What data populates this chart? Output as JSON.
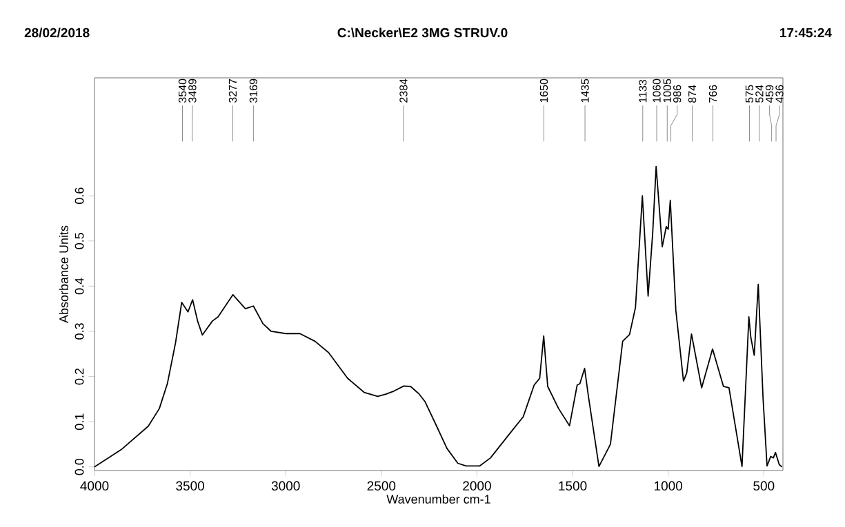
{
  "chart_data": {
    "type": "line",
    "title": "C:\\Necker\\E2   3MG  STRUV.0",
    "annotations": [
      "28/02/2018",
      "17:45:24",
      {
        "text": "3540",
        "x": 3540
      },
      {
        "text": "3489",
        "x": 3489
      },
      {
        "text": "3277",
        "x": 3277
      },
      {
        "text": "3169",
        "x": 3169
      },
      {
        "text": "2384",
        "x": 2384
      },
      {
        "text": "1650",
        "x": 1650
      },
      {
        "text": "1435",
        "x": 1435
      },
      {
        "text": "1133",
        "x": 1133
      },
      {
        "text": "1060",
        "x": 1060
      },
      {
        "text": "1005",
        "x": 1005
      },
      {
        "text": "986",
        "x": 986
      },
      {
        "text": "874",
        "x": 874
      },
      {
        "text": "766",
        "x": 766
      },
      {
        "text": "575",
        "x": 575
      },
      {
        "text": "524",
        "x": 524
      },
      {
        "text": "459",
        "x": 459
      },
      {
        "text": "436",
        "x": 436
      }
    ],
    "xlabel": "Wavenumber cm-1",
    "ylabel": "Absorbance Units",
    "x": [
      4000,
      3861,
      3719,
      3661,
      3619,
      3576,
      3544,
      3511,
      3487,
      3461,
      3436,
      3383,
      3354,
      3276,
      3211,
      3169,
      3119,
      3076,
      3000,
      2926,
      2847,
      2776,
      2676,
      2590,
      2519,
      2476,
      2433,
      2383,
      2347,
      2304,
      2271,
      2214,
      2157,
      2100,
      2057,
      1986,
      1929,
      1815,
      1758,
      1701,
      1672,
      1651,
      1630,
      1573,
      1516,
      1476,
      1462,
      1437,
      1416,
      1362,
      1302,
      1238,
      1202,
      1171,
      1135,
      1105,
      1081,
      1063,
      1031,
      1010,
      1000,
      989,
      960,
      920,
      903,
      878,
      825,
      768,
      711,
      682,
      614,
      578,
      568,
      550,
      529,
      504,
      483,
      464,
      450,
      439,
      419,
      405
    ],
    "series": [
      {
        "color": "#000000",
        "values": [
          0.0,
          0.038,
          0.09,
          0.129,
          0.184,
          0.275,
          0.364,
          0.343,
          0.37,
          0.323,
          0.292,
          0.323,
          0.332,
          0.381,
          0.35,
          0.356,
          0.317,
          0.3,
          0.295,
          0.295,
          0.278,
          0.253,
          0.196,
          0.165,
          0.156,
          0.161,
          0.168,
          0.179,
          0.178,
          0.162,
          0.144,
          0.093,
          0.041,
          0.008,
          0.002,
          0.002,
          0.02,
          0.081,
          0.111,
          0.181,
          0.196,
          0.29,
          0.178,
          0.129,
          0.091,
          0.181,
          0.184,
          0.218,
          0.153,
          0.001,
          0.05,
          0.278,
          0.293,
          0.353,
          0.6,
          0.378,
          0.517,
          0.665,
          0.487,
          0.532,
          0.526,
          0.59,
          0.347,
          0.19,
          0.208,
          0.294,
          0.175,
          0.261,
          0.178,
          0.175,
          0.001,
          0.332,
          0.287,
          0.247,
          0.404,
          0.153,
          0.002,
          0.023,
          0.02,
          0.032,
          0.005,
          0.0
        ]
      }
    ],
    "xlim": [
      4000,
      400
    ],
    "xticks": [
      4000,
      3500,
      3000,
      2500,
      2000,
      1500,
      1000,
      500
    ],
    "ylim": [
      -0.008,
      0.861
    ],
    "yticks": [
      {
        "value": 0,
        "label": "0.0"
      },
      {
        "value": 0.1,
        "label": "0.1"
      },
      {
        "value": 0.2,
        "label": "0.2"
      },
      {
        "value": 0.3,
        "label": "0.3"
      },
      {
        "value": 0.4,
        "label": "0.4"
      },
      {
        "value": 0.5,
        "label": "0.5"
      },
      {
        "value": 0.6,
        "label": "0.6"
      }
    ],
    "grid": false,
    "marker": "none",
    "line_style": "solid"
  }
}
